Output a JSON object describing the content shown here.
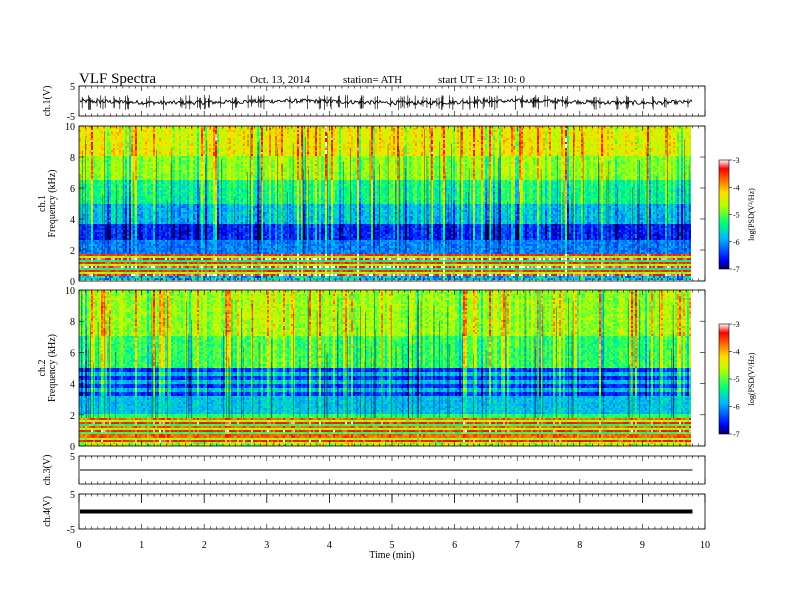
{
  "header": {
    "title": "VLF  Spectra",
    "date": "Oct. 13, 2014",
    "station": "station= ATH",
    "start": "start  UT  =   13: 10: 0"
  },
  "chart_data": [
    {
      "type": "line",
      "panel": "ch1-waveform",
      "ylabel": "ch.1(V)",
      "ylim": [
        -5,
        5
      ],
      "yticks": [
        "5",
        "-5"
      ],
      "xlim": [
        0,
        10
      ],
      "trace_range_approx": [
        -3,
        2
      ],
      "trace_end_min": 9.8,
      "color": "#000000"
    },
    {
      "type": "heatmap",
      "panel": "ch1-spectrogram",
      "ylabel": "ch.1\nFrequency  (kHz)",
      "ylim": [
        0,
        10
      ],
      "yticks": [
        "0",
        "2",
        "4",
        "6",
        "8",
        "10"
      ],
      "xlim": [
        0,
        10
      ],
      "data_end_min": 9.8,
      "colorbar": {
        "label": "log(PSD(V²/Hz)",
        "range": [
          -7,
          -3
        ],
        "ticks": [
          "-3",
          "-4",
          "-5",
          "-6",
          "-7"
        ]
      },
      "bands": [
        {
          "f_from": 0,
          "f_to": 1.7,
          "level": "mixed strong lines (orange/red/magenta)"
        },
        {
          "f_from": 1.7,
          "f_to": 3.6,
          "level": "low, about -6.5 (blue)"
        },
        {
          "f_from": 3.6,
          "f_to": 6.5,
          "level": "about -5.5 (cyan/green)"
        },
        {
          "f_from": 6.5,
          "f_to": 10,
          "level": "about -4.5 (yellow/orange, red bursts)"
        }
      ]
    },
    {
      "type": "heatmap",
      "panel": "ch2-spectrogram",
      "ylabel": "ch.2\nFrequency  (kHz)",
      "ylim": [
        0,
        10
      ],
      "yticks": [
        "0",
        "2",
        "4",
        "6",
        "8",
        "10"
      ],
      "xlim": [
        0,
        10
      ],
      "data_end_min": 9.8,
      "colorbar": {
        "label": "log(PSD(V²/Hz)",
        "range": [
          -7,
          -3
        ],
        "ticks": [
          "-3",
          "-4",
          "-5",
          "-6",
          "-7"
        ]
      },
      "bands": [
        {
          "f_from": 0,
          "f_to": 2,
          "level": "strong horizontal lines (orange/red)"
        },
        {
          "f_from": 2.5,
          "f_to": 5,
          "level": "about -6.3 (blue bands)"
        },
        {
          "f_from": 5,
          "f_to": 10,
          "level": "about -5 (green/yellow, red bursts)"
        }
      ]
    },
    {
      "type": "line",
      "panel": "ch3-waveform",
      "ylabel": "ch.3(V)",
      "ylim": [
        -5,
        5
      ],
      "yticks": [
        "5"
      ],
      "xlim": [
        0,
        10
      ],
      "trace_level": 0,
      "trace_end_min": 9.8,
      "color": "#000000"
    },
    {
      "type": "line",
      "panel": "ch4-waveform",
      "ylabel": "ch.4(V)",
      "ylim": [
        -5,
        5
      ],
      "yticks": [
        "5",
        "-5"
      ],
      "xlim": [
        0,
        10
      ],
      "trace_level": 0,
      "trace_end_min": 9.8,
      "color": "#000000"
    }
  ],
  "x_axis": {
    "label": "Time  (min)",
    "ticks": [
      "0",
      "1",
      "2",
      "3",
      "4",
      "5",
      "6",
      "7",
      "8",
      "9",
      "10"
    ]
  }
}
